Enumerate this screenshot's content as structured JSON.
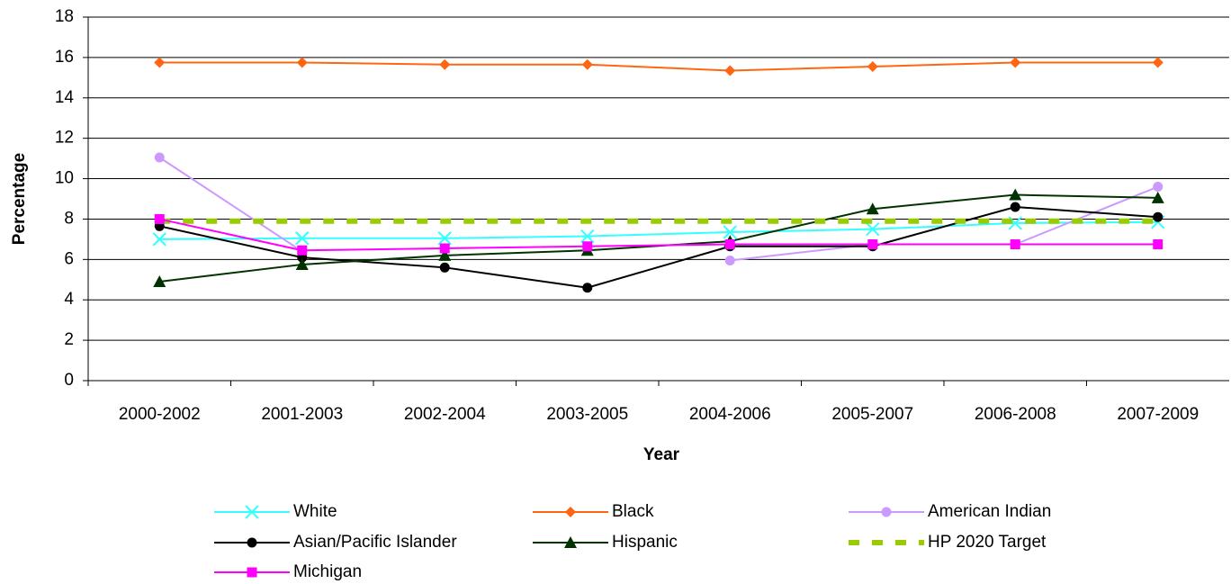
{
  "chart_data": {
    "type": "line",
    "x_label": "Year",
    "y_label": "Percentage",
    "categories": [
      "2000-2002",
      "2001-2003",
      "2002-2004",
      "2003-2005",
      "2004-2006",
      "2005-2007",
      "2006-2008",
      "2007-2009"
    ],
    "ylim": [
      0,
      18
    ],
    "yticks": [
      0,
      2,
      4,
      6,
      8,
      10,
      12,
      14,
      16,
      18
    ],
    "grid": true,
    "legend": "bottom",
    "series": [
      {
        "name": "White",
        "color": "#33ffff",
        "marker": "x",
        "values": [
          7.0,
          7.05,
          7.05,
          7.15,
          7.35,
          7.5,
          7.8,
          7.85
        ]
      },
      {
        "name": "Black",
        "color": "#ff6611",
        "marker": "diamond",
        "values": [
          15.75,
          15.75,
          15.65,
          15.65,
          15.35,
          15.55,
          15.75,
          15.75
        ]
      },
      {
        "name": "American Indian",
        "color": "#cc99ff",
        "marker": "circle",
        "values": [
          11.05,
          6.4,
          null,
          null,
          5.95,
          6.75,
          6.75,
          9.6
        ]
      },
      {
        "name": "Asian/Pacific Islander",
        "color": "#000000",
        "marker": "circle",
        "values": [
          7.65,
          6.1,
          5.6,
          4.6,
          6.65,
          6.65,
          8.6,
          8.1
        ]
      },
      {
        "name": "Hispanic",
        "color": "#003300",
        "marker": "triangle",
        "values": [
          4.9,
          5.75,
          6.2,
          6.45,
          6.9,
          8.5,
          9.2,
          9.05
        ]
      },
      {
        "name": "HP 2020 Target",
        "color": "#99cc00",
        "marker": "none",
        "dash": true,
        "values": [
          7.9,
          7.9,
          7.9,
          7.9,
          7.9,
          7.9,
          7.9,
          7.9
        ]
      },
      {
        "name": "Michigan",
        "color": "#ff00ff",
        "marker": "square",
        "values": [
          8.0,
          6.45,
          6.55,
          6.65,
          6.75,
          6.75,
          6.75,
          6.75
        ]
      }
    ]
  }
}
